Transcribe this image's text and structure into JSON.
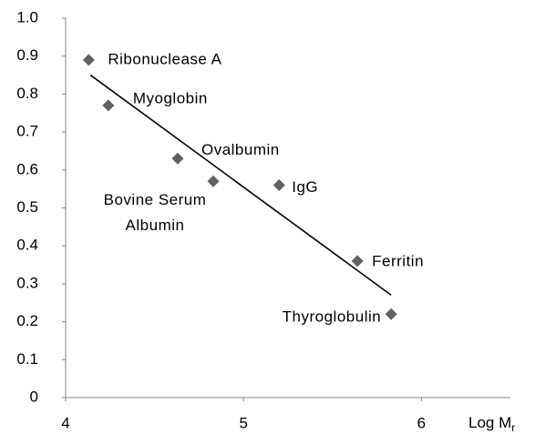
{
  "chart_data": {
    "type": "scatter",
    "x": [
      4.13,
      4.24,
      4.63,
      4.83,
      5.2,
      5.64,
      5.83
    ],
    "values": [
      0.89,
      0.77,
      0.63,
      0.57,
      0.56,
      0.36,
      0.22
    ],
    "point_labels": [
      [
        "Ribonuclease A"
      ],
      [
        "Myoglobin"
      ],
      [
        "Ovalbumin"
      ],
      [
        "Bovine Serum",
        "Albumin"
      ],
      [
        "IgG"
      ],
      [
        "Ferritin"
      ],
      [
        "Thyroglobulin"
      ]
    ],
    "color": "#606060",
    "trendline": {
      "x": [
        4.14,
        5.83
      ],
      "y": [
        0.85,
        0.27
      ],
      "color": "#000000"
    },
    "xlabel": {
      "main": "Log M",
      "sub": "r"
    },
    "xlim": [
      4,
      6.5
    ],
    "xticks": [
      4,
      5,
      6
    ],
    "ylim": [
      0,
      1
    ],
    "yticks": [
      0,
      0.1,
      0.2,
      0.3,
      0.4,
      0.5,
      0.6,
      0.7,
      0.8,
      0.9,
      {
        "value": 1,
        "label": "1.0"
      }
    ]
  }
}
